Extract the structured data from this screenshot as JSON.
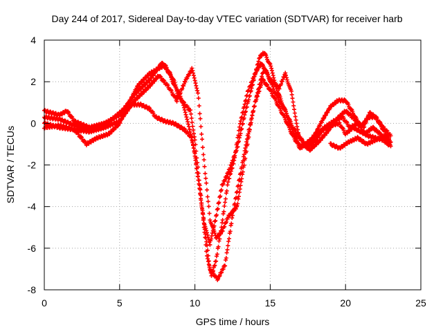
{
  "chart_data": {
    "type": "scatter",
    "title": "Day 244 of 2017, Sidereal Day-to-day VTEC variation (SDTVAR) for receiver harb",
    "xlabel": "GPS time / hours",
    "ylabel": "SDTVAR / TECUs",
    "xlim": [
      0,
      25
    ],
    "ylim": [
      -8,
      4
    ],
    "x_ticks": [
      0,
      5,
      10,
      15,
      20,
      25
    ],
    "y_ticks": [
      -8,
      -6,
      -4,
      -2,
      0,
      2,
      4
    ],
    "x_tick_labels": [
      "0",
      "5",
      "10",
      "15",
      "20",
      "25"
    ],
    "y_tick_labels": [
      "-8",
      "-6",
      "-4",
      "-2",
      "0",
      "2",
      "4"
    ],
    "grid": true,
    "marker": "+",
    "marker_color": "#ff0000",
    "series": [
      {
        "name": "track-1",
        "points": [
          [
            0,
            0.6
          ],
          [
            0.5,
            0.5
          ],
          [
            1.0,
            0.4
          ],
          [
            1.5,
            0.6
          ],
          [
            2.0,
            0.1
          ],
          [
            3.0,
            -0.2
          ],
          [
            4.0,
            0.0
          ],
          [
            5.0,
            0.4
          ],
          [
            6.0,
            1.4
          ],
          [
            7.0,
            2.1
          ],
          [
            7.8,
            2.9
          ],
          [
            8.3,
            2.4
          ],
          [
            9.0,
            1.2
          ],
          [
            9.7,
            0.6
          ],
          [
            10.0,
            -0.8
          ],
          [
            10.4,
            -3.5
          ],
          [
            10.8,
            -6.4
          ],
          [
            11.1,
            -7.3
          ],
          [
            11.4,
            -6.6
          ],
          [
            11.8,
            -4.8
          ],
          [
            12.2,
            -2.8
          ],
          [
            12.6,
            -1.8
          ],
          [
            13.0,
            0.0
          ],
          [
            13.5,
            1.5
          ],
          [
            14.0,
            2.4
          ],
          [
            14.4,
            2.9
          ],
          [
            14.9,
            2.2
          ],
          [
            15.5,
            1.2
          ],
          [
            16.0,
            0.6
          ],
          [
            16.5,
            -0.4
          ],
          [
            17.0,
            -1.1
          ],
          [
            17.5,
            -1.0
          ],
          [
            18.0,
            -0.5
          ],
          [
            18.5,
            0.2
          ],
          [
            19.0,
            0.8
          ],
          [
            19.5,
            1.1
          ],
          [
            20.0,
            1.1
          ],
          [
            20.5,
            0.5
          ],
          [
            21.0,
            -0.2
          ],
          [
            21.5,
            0.3
          ],
          [
            22.0,
            0.3
          ],
          [
            22.5,
            -0.3
          ],
          [
            23.0,
            -0.9
          ]
        ]
      },
      {
        "name": "track-2",
        "points": [
          [
            0,
            -0.2
          ],
          [
            1.0,
            -0.1
          ],
          [
            2.0,
            -0.3
          ],
          [
            3.0,
            -0.4
          ],
          [
            4.0,
            -0.2
          ],
          [
            5.0,
            0.1
          ],
          [
            5.5,
            0.6
          ],
          [
            6.0,
            1.1
          ],
          [
            7.0,
            1.8
          ],
          [
            7.6,
            2.3
          ],
          [
            8.2,
            1.8
          ],
          [
            8.8,
            1.1
          ],
          [
            9.4,
            2.1
          ],
          [
            9.8,
            2.6
          ],
          [
            10.2,
            1.5
          ],
          [
            10.6,
            -1.8
          ],
          [
            11.0,
            -4.6
          ],
          [
            11.4,
            -5.5
          ],
          [
            11.8,
            -5.2
          ],
          [
            12.2,
            -4.5
          ],
          [
            12.8,
            -4.0
          ],
          [
            13.3,
            -1.8
          ],
          [
            13.8,
            0.4
          ],
          [
            14.2,
            1.6
          ],
          [
            14.6,
            2.7
          ],
          [
            15.0,
            2.1
          ],
          [
            15.6,
            1.7
          ],
          [
            16.0,
            2.4
          ],
          [
            16.4,
            1.5
          ],
          [
            16.9,
            -0.6
          ],
          [
            17.4,
            -1.2
          ],
          [
            18.0,
            -0.8
          ],
          [
            18.5,
            -0.3
          ],
          [
            19.0,
            -0.1
          ],
          [
            19.6,
            0.0
          ],
          [
            20.0,
            -0.5
          ],
          [
            20.5,
            -0.2
          ],
          [
            21.0,
            -0.4
          ],
          [
            21.5,
            -0.6
          ],
          [
            22.0,
            -0.7
          ],
          [
            22.5,
            -0.8
          ],
          [
            23.0,
            -1.1
          ]
        ]
      },
      {
        "name": "track-3",
        "points": [
          [
            0,
            0.0
          ],
          [
            1.0,
            -0.2
          ],
          [
            2.0,
            -0.3
          ],
          [
            2.8,
            -1.0
          ],
          [
            3.5,
            -0.7
          ],
          [
            4.3,
            -0.5
          ],
          [
            5.0,
            0.0
          ],
          [
            5.5,
            0.8
          ],
          [
            6.2,
            1.8
          ],
          [
            7.0,
            2.4
          ],
          [
            7.5,
            2.6
          ],
          [
            8.0,
            2.8
          ],
          [
            8.5,
            2.2
          ],
          [
            9.2,
            1.0
          ],
          [
            9.6,
            -0.2
          ],
          [
            10.0,
            -1.5
          ],
          [
            10.5,
            -4.2
          ],
          [
            11.0,
            -7.0
          ],
          [
            11.5,
            -7.5
          ],
          [
            12.0,
            -6.8
          ],
          [
            12.5,
            -4.4
          ],
          [
            13.0,
            -2.5
          ],
          [
            13.5,
            -0.6
          ],
          [
            14.0,
            1.0
          ],
          [
            14.5,
            2.1
          ],
          [
            15.0,
            1.6
          ],
          [
            15.5,
            0.9
          ],
          [
            16.0,
            0.2
          ],
          [
            16.5,
            -0.6
          ],
          [
            17.0,
            -1.2
          ],
          [
            17.5,
            -0.9
          ],
          [
            18.0,
            -0.6
          ],
          [
            18.6,
            -0.2
          ],
          [
            19.2,
            0.1
          ],
          [
            19.8,
            0.3
          ],
          [
            20.3,
            -0.2
          ],
          [
            20.8,
            0.0
          ],
          [
            21.3,
            -0.5
          ],
          [
            21.8,
            -0.2
          ],
          [
            22.3,
            -0.5
          ],
          [
            22.8,
            -0.9
          ]
        ]
      },
      {
        "name": "track-4",
        "points": [
          [
            0,
            0.3
          ],
          [
            1.0,
            0.2
          ],
          [
            2.0,
            -0.1
          ],
          [
            3.0,
            -0.3
          ],
          [
            4.0,
            -0.1
          ],
          [
            5.0,
            0.5
          ],
          [
            5.6,
            0.9
          ],
          [
            6.4,
            0.9
          ],
          [
            7.0,
            0.7
          ],
          [
            7.4,
            0.3
          ],
          [
            8.0,
            0.1
          ],
          [
            8.6,
            0.0
          ],
          [
            9.3,
            -0.3
          ],
          [
            9.8,
            -0.7
          ],
          [
            10.2,
            -2.5
          ],
          [
            10.6,
            -4.8
          ],
          [
            11.0,
            -5.8
          ],
          [
            11.4,
            -4.5
          ],
          [
            11.8,
            -3.0
          ],
          [
            12.3,
            -2.2
          ],
          [
            12.8,
            -1.2
          ],
          [
            13.3,
            0.4
          ],
          [
            13.8,
            1.8
          ],
          [
            14.3,
            3.2
          ],
          [
            14.6,
            3.4
          ],
          [
            15.0,
            2.8
          ],
          [
            15.5,
            1.5
          ],
          [
            16.0,
            0.6
          ],
          [
            16.5,
            -0.2
          ],
          [
            17.0,
            -0.7
          ],
          [
            17.6,
            -1.3
          ],
          [
            18.2,
            -0.9
          ],
          [
            18.8,
            -0.4
          ],
          [
            19.4,
            0.2
          ],
          [
            20.0,
            0.6
          ],
          [
            20.6,
            0.2
          ],
          [
            21.2,
            -0.2
          ],
          [
            21.6,
            0.5
          ],
          [
            22.0,
            0.3
          ],
          [
            22.5,
            -0.2
          ],
          [
            23.0,
            -0.6
          ]
        ]
      },
      {
        "name": "track-5",
        "points": [
          [
            19.0,
            -1.0
          ],
          [
            19.6,
            -1.2
          ],
          [
            20.2,
            -0.9
          ],
          [
            20.8,
            -0.7
          ],
          [
            21.4,
            -1.0
          ],
          [
            22.0,
            -0.8
          ],
          [
            22.6,
            -0.6
          ],
          [
            23.0,
            -0.9
          ]
        ]
      }
    ]
  }
}
